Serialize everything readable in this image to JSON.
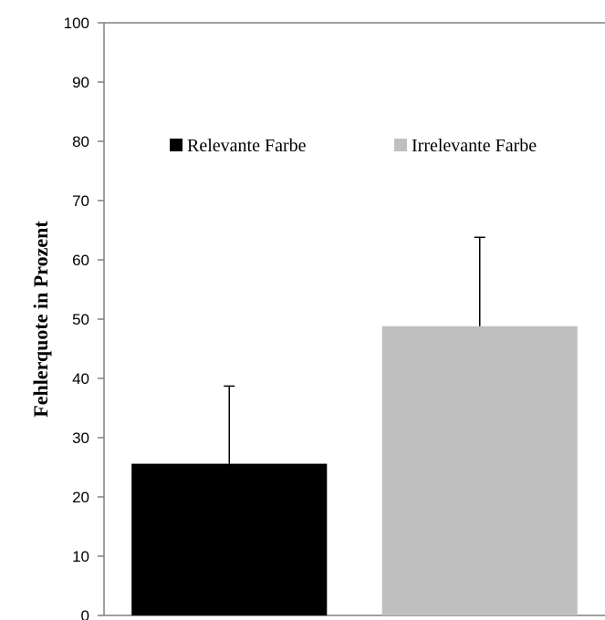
{
  "chart_data": {
    "type": "bar",
    "title": "",
    "xlabel": "",
    "ylabel": "Fehlerquote in Prozent",
    "ylim": [
      0,
      100
    ],
    "yticks": [
      0,
      10,
      20,
      30,
      40,
      50,
      60,
      70,
      80,
      90,
      100
    ],
    "grid": false,
    "legend_position": "top",
    "series": [
      {
        "name": "Relevante Farbe",
        "value": 25.6,
        "error": 13.1,
        "color": "#000000"
      },
      {
        "name": "Irrelevante Farbe",
        "value": 48.8,
        "error": 15.0,
        "color": "#bfbfbf"
      }
    ]
  }
}
